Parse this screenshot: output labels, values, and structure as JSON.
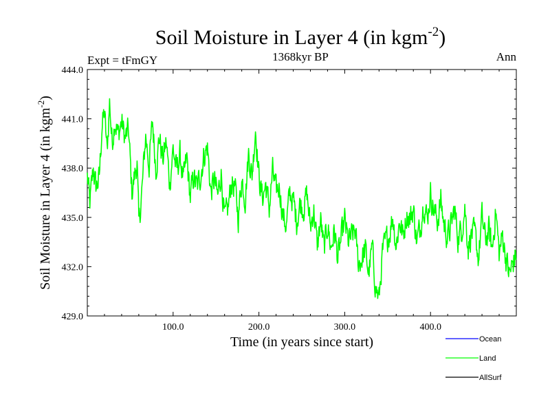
{
  "chart_data": {
    "type": "line",
    "title": "Soil Moisture in Layer 4 (in kgm",
    "title_sup": "-2",
    "title_close": ")",
    "subtitle_left": "Expt = tFmGY",
    "subtitle_center": "1368kyr BP",
    "subtitle_right": "Ann",
    "xlabel": "Time (in years since start)",
    "ylabel": "Soil Moisture in Layer 4 (in kgm",
    "ylabel_sup": "-2",
    "ylabel_close": ")",
    "xlim": [
      0,
      500
    ],
    "ylim": [
      429.0,
      444.0
    ],
    "x_ticks": [
      100,
      200,
      300,
      400
    ],
    "x_tick_labels": [
      "100.0",
      "200.0",
      "300.0",
      "400.0"
    ],
    "y_ticks": [
      429,
      432,
      435,
      438,
      441,
      444
    ],
    "y_tick_labels": [
      "429.0",
      "432.0",
      "435.0",
      "438.0",
      "441.0",
      "444.0"
    ],
    "legend": [
      {
        "name": "Ocean",
        "color": "#0000ff"
      },
      {
        "name": "Land",
        "color": "#00ff00"
      },
      {
        "name": "AllSurf",
        "color": "#000000"
      }
    ],
    "series": [
      {
        "name": "Land",
        "color": "#00ff00",
        "anchors_x": [
          0,
          3,
          7,
          10,
          14,
          17,
          20,
          23,
          26,
          29,
          32,
          36,
          40,
          44,
          48,
          52,
          56,
          58,
          60,
          64,
          68,
          72,
          76,
          80,
          84,
          88,
          92,
          96,
          100,
          104,
          108,
          112,
          116,
          120,
          124,
          128,
          132,
          136,
          140,
          144,
          148,
          152,
          156,
          160,
          164,
          168,
          172,
          176,
          180,
          184,
          188,
          192,
          196,
          200,
          204,
          208,
          212,
          216,
          220,
          224,
          228,
          232,
          236,
          240,
          244,
          248,
          252,
          256,
          260,
          264,
          268,
          272,
          276,
          280,
          284,
          288,
          292,
          296,
          300,
          304,
          308,
          312,
          316,
          320,
          324,
          328,
          332,
          336,
          340,
          344,
          348,
          352,
          356,
          360,
          364,
          368,
          372,
          376,
          380,
          384,
          388,
          392,
          396,
          400,
          404,
          408,
          412,
          416,
          420,
          424,
          428,
          432,
          436,
          440,
          444,
          448,
          452,
          456,
          460,
          464,
          468,
          472,
          476,
          480,
          484,
          488,
          492,
          496,
          500
        ],
        "anchors_y": [
          437.5,
          435.8,
          438.0,
          436.8,
          437.4,
          440.5,
          441.4,
          439.0,
          442.0,
          439.5,
          441.0,
          440.0,
          440.8,
          439.8,
          440.3,
          436.5,
          437.8,
          438.4,
          434.5,
          436.8,
          440.0,
          438.2,
          440.8,
          438.0,
          439.9,
          438.5,
          439.6,
          437.0,
          439.2,
          437.8,
          438.8,
          437.2,
          438.6,
          436.2,
          437.5,
          436.8,
          437.6,
          438.8,
          439.3,
          436.5,
          437.3,
          436.2,
          437.8,
          434.8,
          435.5,
          437.2,
          436.8,
          435.0,
          437.4,
          436.2,
          438.9,
          437.5,
          440.5,
          437.5,
          436.2,
          437.0,
          435.5,
          437.8,
          436.5,
          436.9,
          435.1,
          434.5,
          436.5,
          436.0,
          434.8,
          435.9,
          435.6,
          436.4,
          434.4,
          435.5,
          433.2,
          434.8,
          433.0,
          434.6,
          433.1,
          434.2,
          432.5,
          433.7,
          434.8,
          433.5,
          433.8,
          434.2,
          432.2,
          432.5,
          433.0,
          431.6,
          433.1,
          430.8,
          430.0,
          432.8,
          433.5,
          434.0,
          435.1,
          433.3,
          434.8,
          433.8,
          435.2,
          434.9,
          435.5,
          433.5,
          434.4,
          436.0,
          434.9,
          436.5,
          435.4,
          434.8,
          436.0,
          434.5,
          433.8,
          434.5,
          435.5,
          433.8,
          434.2,
          435.6,
          433.2,
          434.1,
          433.8,
          432.5,
          435.0,
          433.6,
          434.2,
          433.0,
          435.5,
          432.8,
          433.9,
          432.5,
          431.5,
          432.2,
          432.8
        ],
        "noise_amplitude": 1.3,
        "samples_per_year": 2
      },
      {
        "name": "Ocean",
        "color": "#0000ff",
        "note": "legend only"
      },
      {
        "name": "AllSurf",
        "color": "#000000",
        "note": "legend only"
      }
    ]
  }
}
